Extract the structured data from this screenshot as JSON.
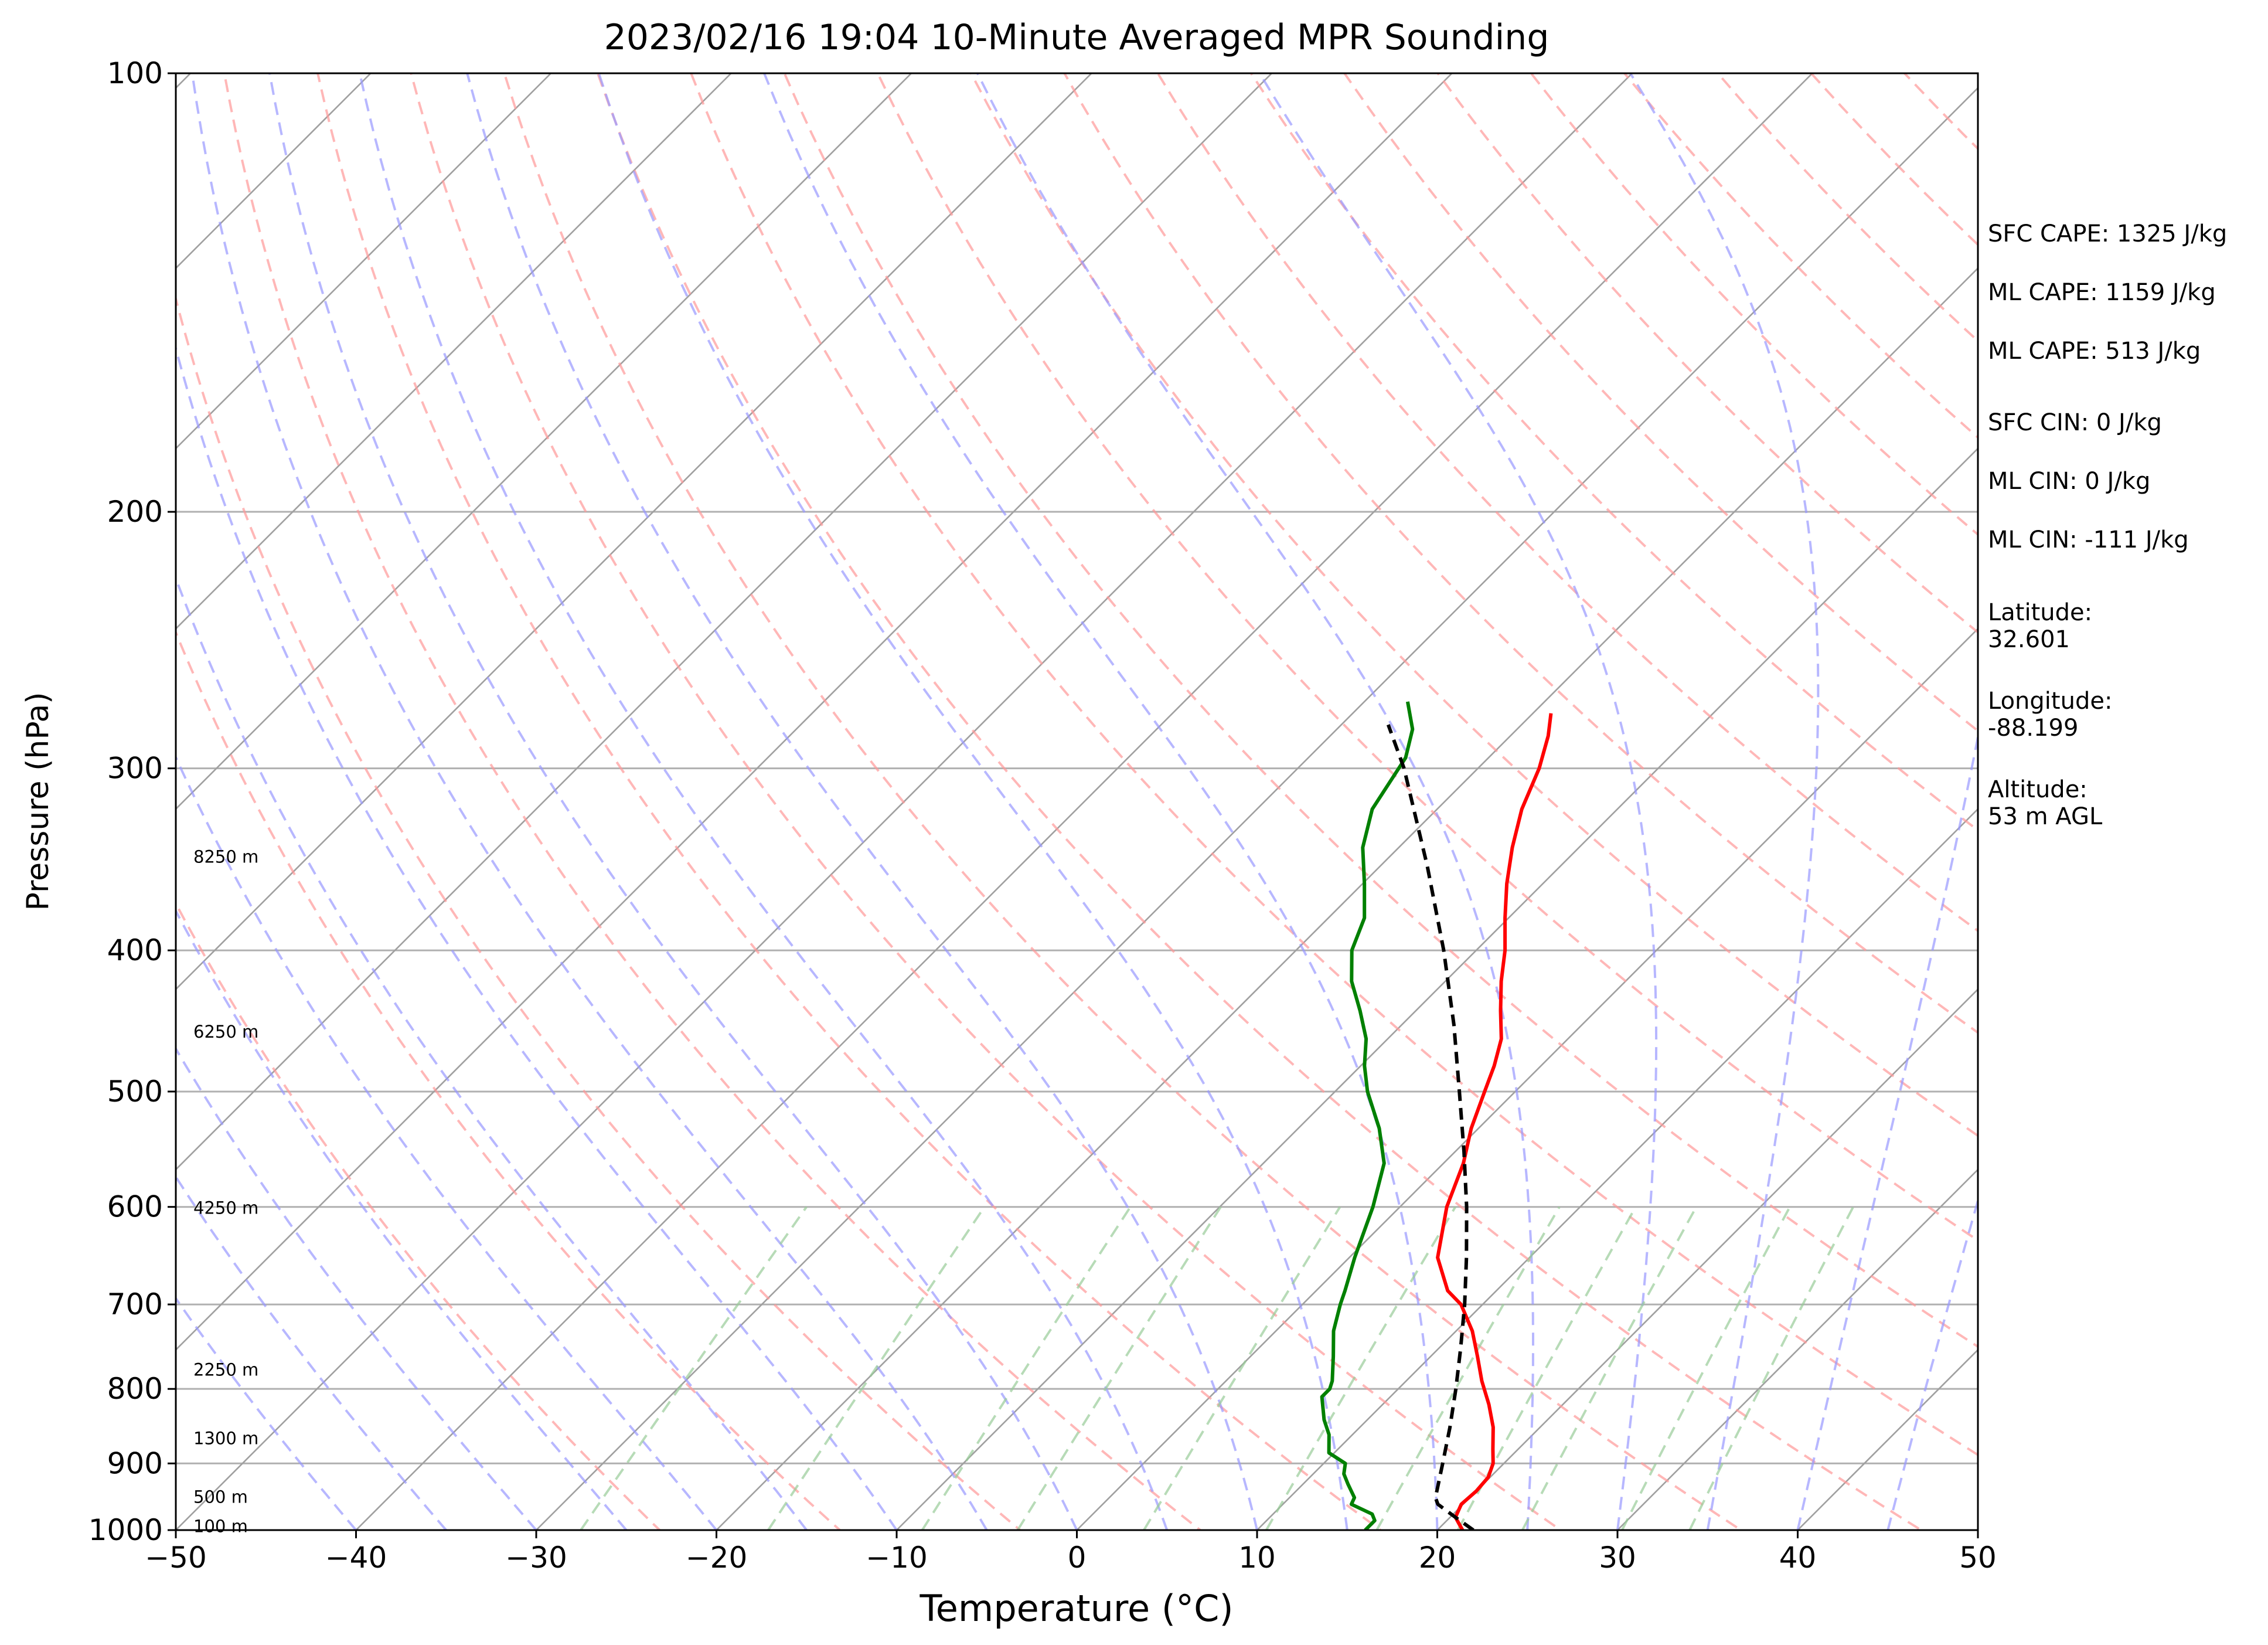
{
  "chart_data": {
    "type": "line",
    "subtype": "skew-t log-p sounding",
    "title": "2023/02/16 19:04 10-Minute Averaged MPR Sounding",
    "xlabel": "Temperature (°C)",
    "ylabel": "Pressure (hPa)",
    "xlim": [
      -50,
      50
    ],
    "ylim": [
      1000,
      100
    ],
    "y_scale": "log",
    "x_ticks": [
      "−50",
      "−40",
      "−30",
      "−20",
      "−10",
      "0",
      "10",
      "20",
      "30",
      "40",
      "50"
    ],
    "y_ticks": [
      "100",
      "200",
      "300",
      "400",
      "500",
      "600",
      "700",
      "800",
      "900",
      "1000"
    ],
    "grid": "horizontal at pressure ticks; skewed isotherms every 10 °C",
    "series": [
      {
        "role": "temperature",
        "color": "#ff0000",
        "points": [
          [
            275,
            -19.0
          ],
          [
            285,
            -17.9
          ],
          [
            300,
            -16.6
          ],
          [
            320,
            -15.3
          ],
          [
            340,
            -13.7
          ],
          [
            360,
            -12.0
          ],
          [
            380,
            -10.2
          ],
          [
            400,
            -8.4
          ],
          [
            420,
            -6.9
          ],
          [
            440,
            -5.3
          ],
          [
            460,
            -3.7
          ],
          [
            480,
            -2.6
          ],
          [
            500,
            -1.7
          ],
          [
            530,
            -0.4
          ],
          [
            560,
            1.1
          ],
          [
            600,
            2.6
          ],
          [
            650,
            4.9
          ],
          [
            685,
            7.3
          ],
          [
            700,
            8.8
          ],
          [
            730,
            10.9
          ],
          [
            760,
            12.6
          ],
          [
            790,
            14.2
          ],
          [
            820,
            15.9
          ],
          [
            850,
            17.4
          ],
          [
            880,
            18.6
          ],
          [
            900,
            19.4
          ],
          [
            920,
            19.9
          ],
          [
            940,
            20.0
          ],
          [
            960,
            19.9
          ],
          [
            980,
            20.3
          ],
          [
            1000,
            21.4
          ]
        ]
      },
      {
        "role": "dewpoint",
        "color": "#008000",
        "points": [
          [
            270,
            -27.6
          ],
          [
            282,
            -25.8
          ],
          [
            295,
            -24.6
          ],
          [
            320,
            -23.6
          ],
          [
            340,
            -22.0
          ],
          [
            360,
            -19.9
          ],
          [
            380,
            -18.0
          ],
          [
            400,
            -16.9
          ],
          [
            420,
            -15.2
          ],
          [
            440,
            -13.1
          ],
          [
            460,
            -11.2
          ],
          [
            480,
            -9.8
          ],
          [
            500,
            -8.2
          ],
          [
            530,
            -5.5
          ],
          [
            560,
            -3.3
          ],
          [
            600,
            -1.5
          ],
          [
            650,
            0.3
          ],
          [
            685,
            1.6
          ],
          [
            700,
            2.1
          ],
          [
            730,
            3.2
          ],
          [
            760,
            4.6
          ],
          [
            790,
            5.9
          ],
          [
            800,
            6.2
          ],
          [
            810,
            6.2
          ],
          [
            840,
            7.6
          ],
          [
            860,
            8.7
          ],
          [
            885,
            9.7
          ],
          [
            900,
            11.2
          ],
          [
            915,
            11.7
          ],
          [
            930,
            12.5
          ],
          [
            950,
            13.6
          ],
          [
            960,
            13.8
          ],
          [
            975,
            15.5
          ],
          [
            985,
            16.0
          ],
          [
            1000,
            16.0
          ]
        ]
      },
      {
        "role": "parcel profile",
        "color": "#000000",
        "style": "dashed",
        "points": [
          [
            1000,
            22.0
          ],
          [
            980,
            20.3
          ],
          [
            960,
            18.6
          ],
          [
            950,
            18.1
          ],
          [
            900,
            16.6
          ],
          [
            850,
            15.0
          ],
          [
            800,
            13.2
          ],
          [
            750,
            11.2
          ],
          [
            700,
            9.0
          ],
          [
            650,
            6.5
          ],
          [
            600,
            3.7
          ],
          [
            550,
            0.5
          ],
          [
            500,
            -3.1
          ],
          [
            450,
            -7.1
          ],
          [
            400,
            -11.8
          ],
          [
            350,
            -17.4
          ],
          [
            300,
            -24.1
          ],
          [
            280,
            -27.4
          ]
        ]
      }
    ],
    "reference_lines": {
      "dry_adiabats": {
        "color": "#ff9999",
        "style": "dashed"
      },
      "moist_adiabats": {
        "color": "#9999ff",
        "style": "dashed"
      },
      "mixing_ratio": {
        "color": "#99cc99",
        "style": "dashed"
      }
    },
    "height_labels": [
      {
        "text": "8250 m",
        "p": 345
      },
      {
        "text": "6250 m",
        "p": 455
      },
      {
        "text": "4250 m",
        "p": 601
      },
      {
        "text": "2250 m",
        "p": 776
      },
      {
        "text": "1300 m",
        "p": 865
      },
      {
        "text": "500 m",
        "p": 949
      },
      {
        "text": "100 m",
        "p": 994
      }
    ]
  },
  "annotations": {
    "sfc_cape": "SFC CAPE: 1325 J/kg",
    "ml_cape_1": "ML CAPE: 1159 J/kg",
    "ml_cape_2": "ML CAPE: 513 J/kg",
    "sfc_cin": "SFC CIN: 0 J/kg",
    "ml_cin_1": "ML CIN: 0 J/kg",
    "ml_cin_2": "ML CIN: -111 J/kg",
    "latitude": "Latitude:\n32.601",
    "longitude": "Longitude:\n-88.199",
    "altitude": "Altitude:\n53 m AGL"
  }
}
